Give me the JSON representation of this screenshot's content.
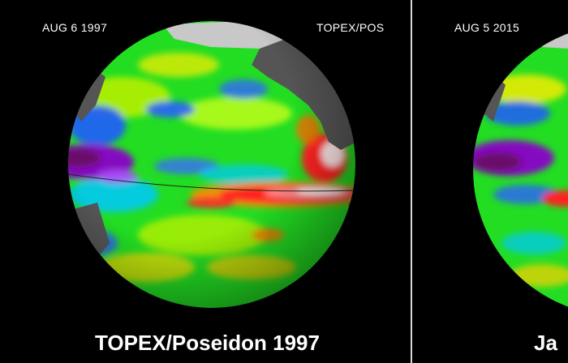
{
  "left_panel": {
    "date": "AUG 6 1997",
    "source": "TOPEX/POS",
    "caption": "TOPEX/Poseidon 1997"
  },
  "right_panel": {
    "date": "AUG 5 2015",
    "caption": "Ja"
  },
  "colors": {
    "background": "#000000",
    "divider": "#d9d9d9",
    "land": "#555555",
    "ice": "#c8c8c8",
    "ocean_base": "#22dd22",
    "anomaly_high": "#ff2222",
    "anomaly_peak": "#ffffff",
    "anomaly_low": "#7a0a7a"
  }
}
